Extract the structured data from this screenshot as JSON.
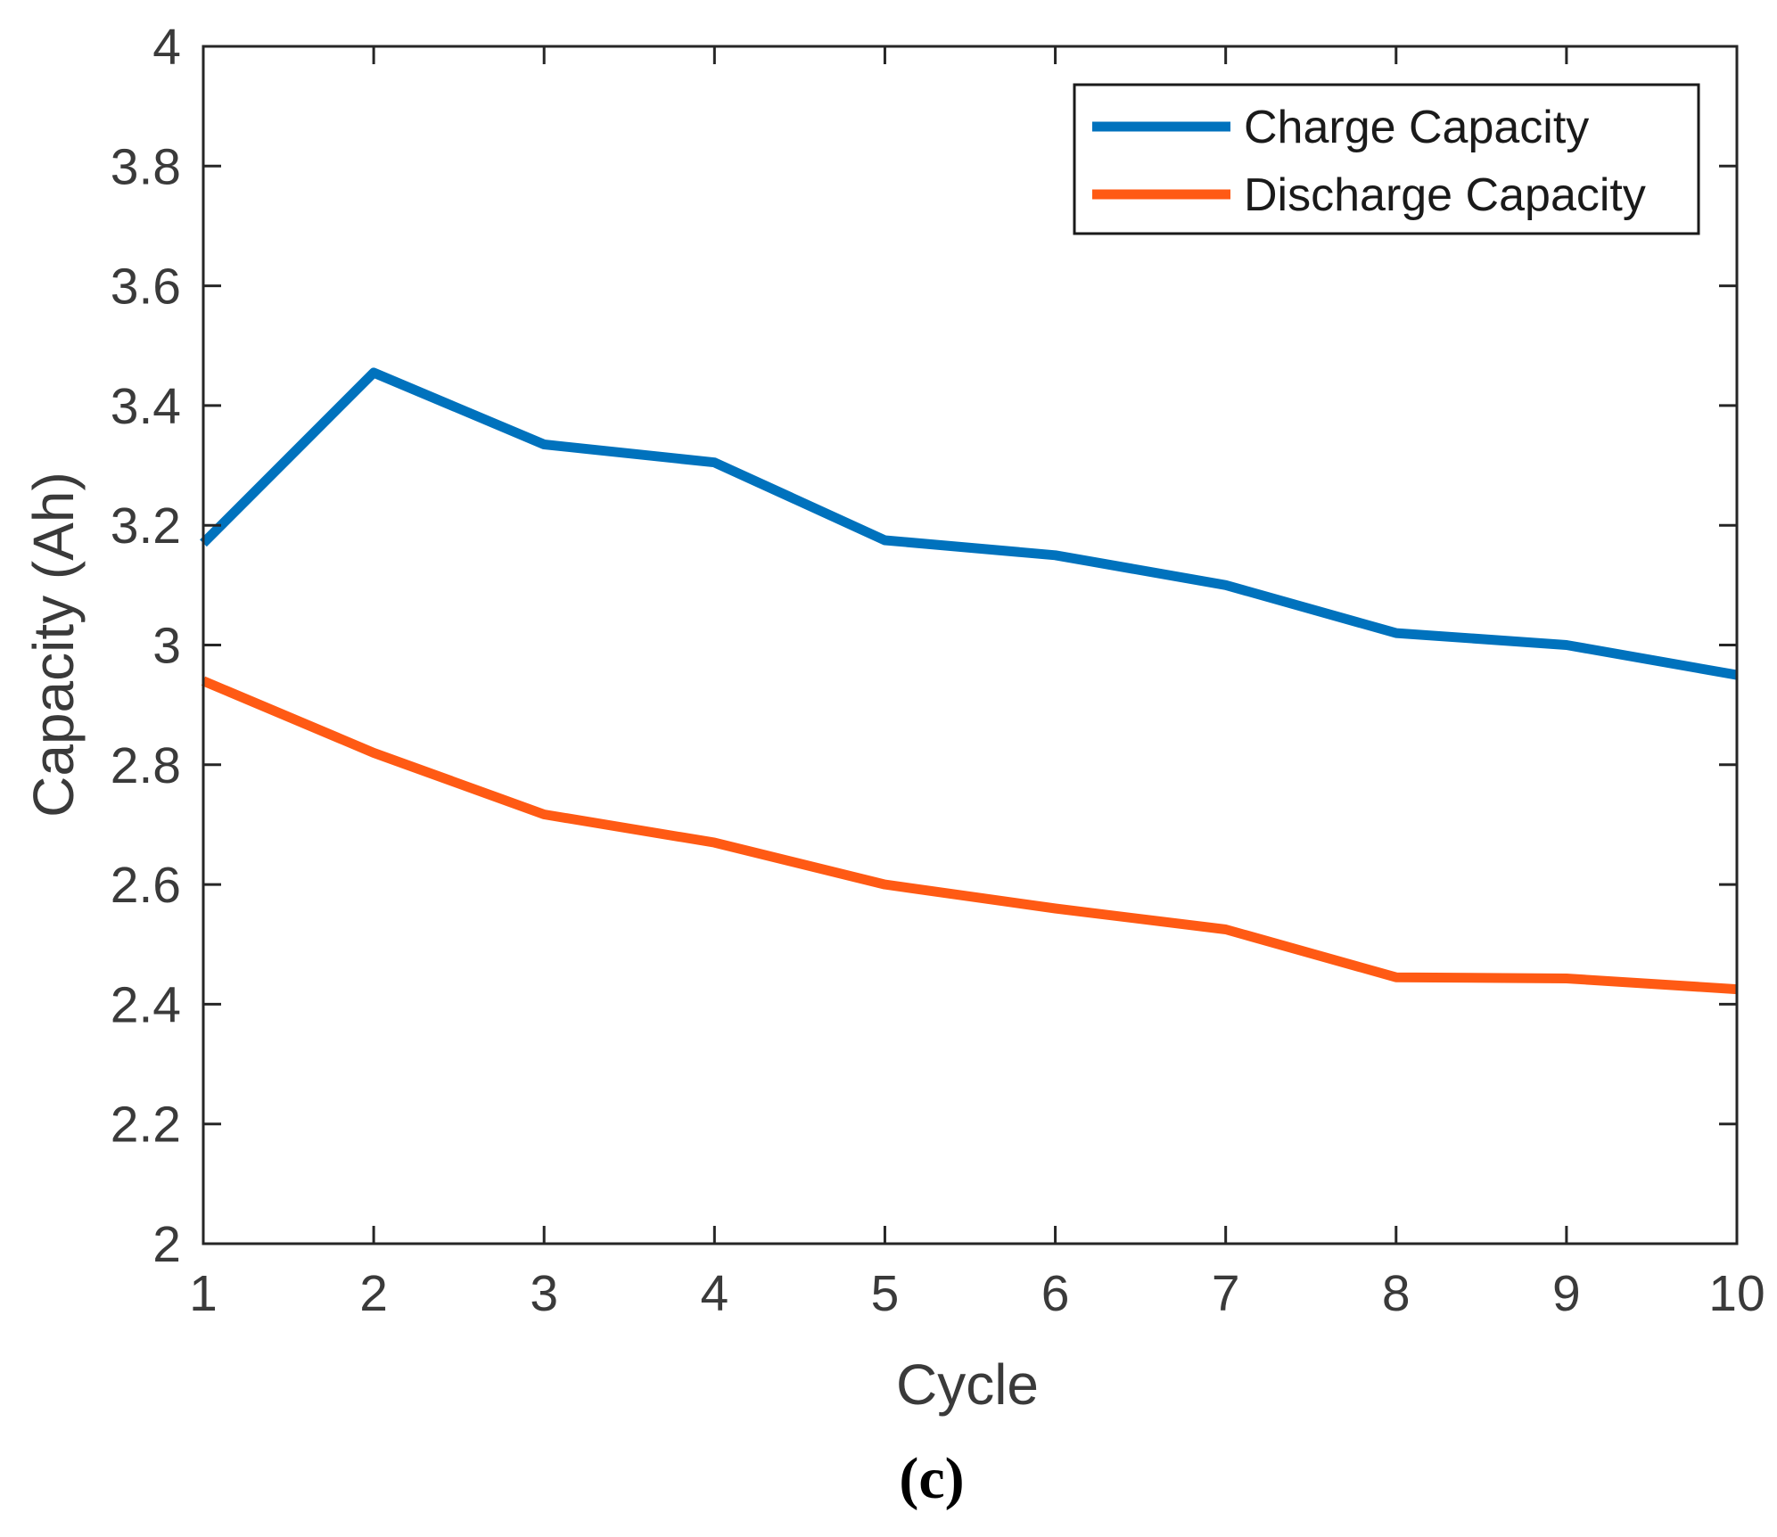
{
  "chart_data": {
    "type": "line",
    "title": "",
    "xlabel": "Cycle",
    "ylabel": "Capacity (Ah)",
    "x": [
      1,
      2,
      3,
      4,
      5,
      6,
      7,
      8,
      9,
      10
    ],
    "xticks": [
      1,
      2,
      3,
      4,
      5,
      6,
      7,
      8,
      9,
      10
    ],
    "xtick_labels": [
      "1",
      "2",
      "3",
      "4",
      "5",
      "6",
      "7",
      "8",
      "9",
      "10"
    ],
    "yticks": [
      2,
      2.2,
      2.4,
      2.6,
      2.8,
      3,
      3.2,
      3.4,
      3.6,
      3.8,
      4
    ],
    "ytick_labels": [
      "2",
      "2.2",
      "2.4",
      "2.6",
      "2.8",
      "3",
      "3.2",
      "3.4",
      "3.6",
      "3.8",
      "4"
    ],
    "xlim": [
      1,
      10
    ],
    "ylim": [
      2,
      4
    ],
    "grid": false,
    "legend_position": "top-right",
    "series": [
      {
        "name": "Charge Capacity",
        "color": "#0072BD",
        "values": [
          3.17,
          3.455,
          3.335,
          3.305,
          3.175,
          3.15,
          3.1,
          3.02,
          3.0,
          2.95
        ]
      },
      {
        "name": "Discharge Capacity",
        "color": "#FF5A14",
        "values": [
          2.94,
          2.82,
          2.717,
          2.67,
          2.6,
          2.56,
          2.525,
          2.445,
          2.443,
          2.425
        ]
      }
    ],
    "caption": "(c)"
  }
}
